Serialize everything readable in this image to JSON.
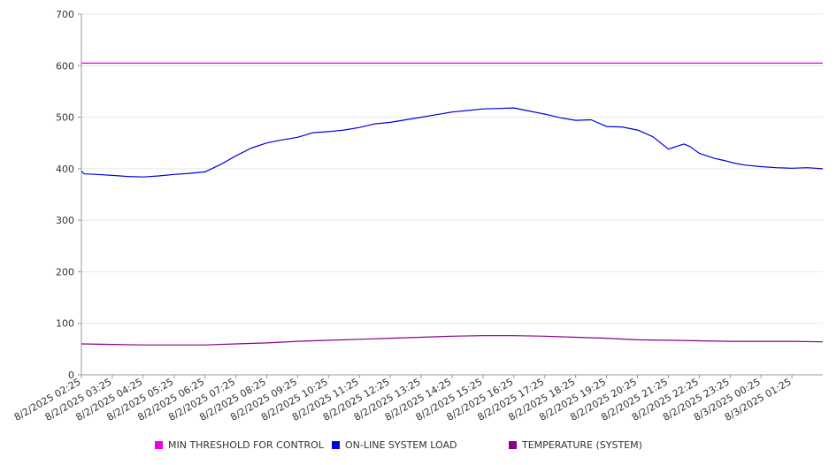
{
  "chart_data": {
    "type": "line",
    "ylim": [
      0,
      700
    ],
    "yticks": [
      0,
      100,
      200,
      300,
      400,
      500,
      600,
      700
    ],
    "xlim": [
      0,
      24
    ],
    "xtick_labels": [
      "8/2/2025 02:25",
      "8/2/2025 03:25",
      "8/2/2025 04:25",
      "8/2/2025 05:25",
      "8/2/2025 06:25",
      "8/2/2025 07:25",
      "8/2/2025 08:25",
      "8/2/2025 09:25",
      "8/2/2025 10:25",
      "8/2/2025 11:25",
      "8/2/2025 12:25",
      "8/2/2025 13:25",
      "8/2/2025 14:25",
      "8/2/2025 15:25",
      "8/2/2025 16:25",
      "8/2/2025 17:25",
      "8/2/2025 18:25",
      "8/2/2025 19:25",
      "8/2/2025 20:25",
      "8/2/2025 21:25",
      "8/2/2025 22:25",
      "8/2/2025 23:25",
      "8/3/2025 00:25",
      "8/3/2025 01:25"
    ],
    "grid": true,
    "legend_position": "bottom",
    "series": [
      {
        "name": "MIN THRESHOLD FOR CONTROL",
        "color": "#e800e8",
        "x": [
          0,
          24
        ],
        "y": [
          605,
          605
        ]
      },
      {
        "name": "ON-LINE SYSTEM LOAD",
        "color": "#0000dd",
        "x": [
          0,
          0.1,
          0.5,
          1,
          1.5,
          2,
          2.5,
          3,
          3.5,
          4,
          4.5,
          5,
          5.5,
          6,
          6.5,
          7,
          7.5,
          8,
          8.5,
          9,
          9.5,
          10,
          10.5,
          11,
          11.5,
          12,
          12.5,
          13,
          13.5,
          14,
          14.5,
          15,
          15.5,
          16,
          16.5,
          17,
          17.5,
          18,
          18.5,
          19,
          19.5,
          19.7,
          20,
          20.5,
          20.8,
          21,
          21.2,
          21.5,
          22,
          22.5,
          23,
          23.5,
          24
        ],
        "y": [
          395,
          390,
          389,
          387,
          385,
          384,
          386,
          389,
          391,
          394,
          408,
          425,
          440,
          450,
          456,
          461,
          470,
          472,
          475,
          480,
          487,
          490,
          495,
          500,
          505,
          510,
          513,
          516,
          517,
          518,
          512,
          506,
          499,
          494,
          495,
          482,
          481,
          475,
          462,
          438,
          448,
          443,
          430,
          420,
          416,
          413,
          410,
          407,
          404,
          402,
          401,
          402,
          400
        ]
      },
      {
        "name": "TEMPERATURE (SYSTEM)",
        "color": "#880088",
        "x": [
          0,
          1,
          2,
          3,
          4,
          5,
          6,
          7,
          8,
          9,
          10,
          11,
          12,
          13,
          14,
          15,
          16,
          17,
          18,
          19,
          20,
          21,
          22,
          23,
          24
        ],
        "y": [
          60,
          59,
          58,
          58,
          58,
          60,
          62,
          65,
          67,
          69,
          71,
          73,
          75,
          76,
          76,
          75,
          73,
          71,
          68,
          67,
          66,
          65,
          65,
          65,
          64
        ]
      }
    ]
  }
}
